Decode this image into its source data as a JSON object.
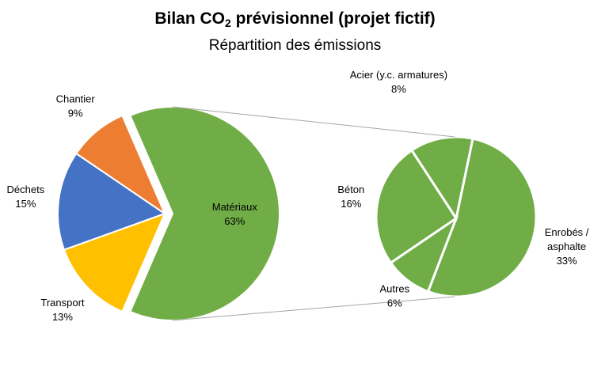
{
  "chart_data": {
    "type": "pie",
    "title_prefix": "Bilan CO",
    "title_sub": "2",
    "title_suffix": " prévisionnel (projet fictif)",
    "subtitle": "Répartition des émissions",
    "main": {
      "slices": [
        {
          "label": "Matériaux",
          "value": 63,
          "value_label": "63%",
          "color": "#70ad47",
          "exploded": true
        },
        {
          "label": "Transport",
          "value": 13,
          "value_label": "13%",
          "color": "#ffc000"
        },
        {
          "label": "Déchets",
          "value": 15,
          "value_label": "15%",
          "color": "#4472c4"
        },
        {
          "label": "Chantier",
          "value": 9,
          "value_label": "9%",
          "color": "#ed7d31"
        }
      ]
    },
    "breakdown_of": "Matériaux",
    "secondary": {
      "slices": [
        {
          "label": "Enrobés / asphalte",
          "label_lines": [
            "Enrobés /",
            "asphalte"
          ],
          "value": 33,
          "value_label": "33%",
          "color": "#70ad47"
        },
        {
          "label": "Autres",
          "value": 6,
          "value_label": "6%",
          "color": "#70ad47"
        },
        {
          "label": "Béton",
          "value": 16,
          "value_label": "16%",
          "color": "#70ad47"
        },
        {
          "label": "Acier (y.c. armatures)",
          "value": 8,
          "value_label": "8%",
          "color": "#70ad47"
        }
      ]
    }
  }
}
